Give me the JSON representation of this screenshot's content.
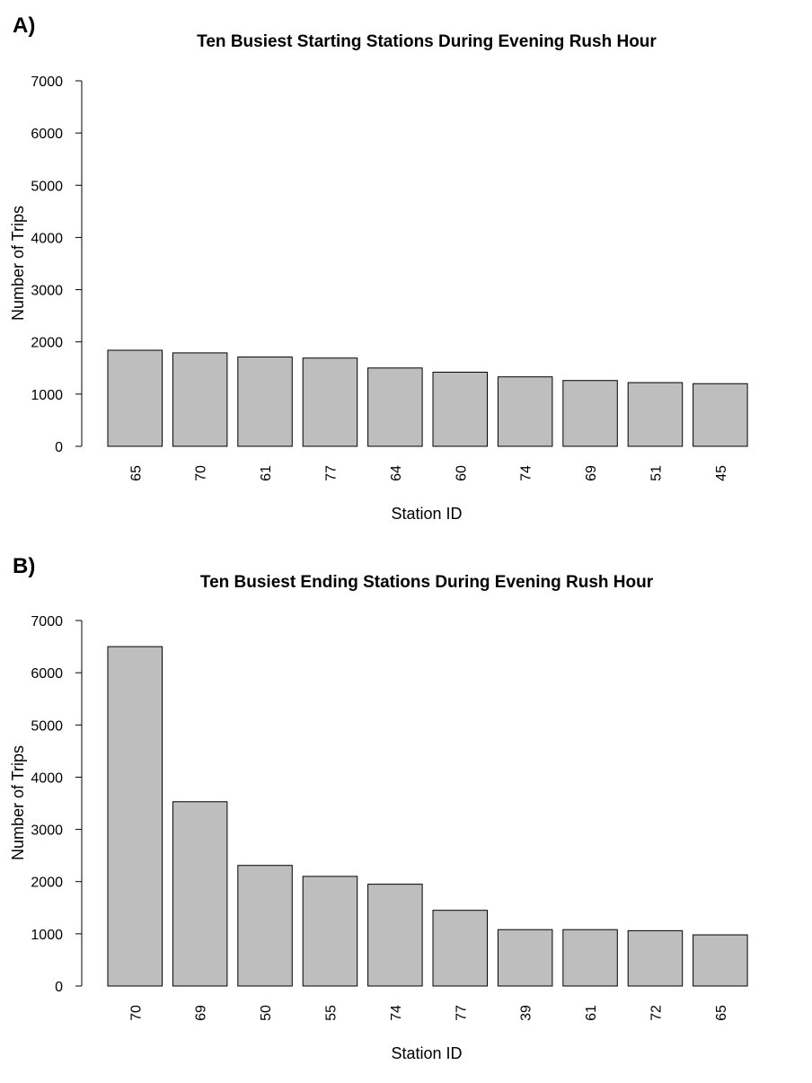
{
  "panels": [
    {
      "letter": "A)",
      "chart_data": {
        "type": "bar",
        "title": "Ten Busiest Starting Stations During Evening Rush Hour",
        "xlabel": "Station ID",
        "ylabel": "Number of Trips",
        "categories": [
          "65",
          "70",
          "61",
          "77",
          "64",
          "60",
          "74",
          "69",
          "51",
          "45"
        ],
        "values": [
          1840,
          1790,
          1710,
          1690,
          1500,
          1420,
          1330,
          1260,
          1220,
          1200
        ],
        "ylim": [
          0,
          7000
        ],
        "yticks": [
          0,
          1000,
          2000,
          3000,
          4000,
          5000,
          6000,
          7000
        ],
        "grid": false,
        "bar_color": "#bebebe"
      }
    },
    {
      "letter": "B)",
      "chart_data": {
        "type": "bar",
        "title": "Ten Busiest Ending Stations During Evening Rush Hour",
        "xlabel": "Station ID",
        "ylabel": "Number of Trips",
        "categories": [
          "70",
          "69",
          "50",
          "55",
          "74",
          "77",
          "39",
          "61",
          "72",
          "65"
        ],
        "values": [
          6500,
          3530,
          2310,
          2100,
          1950,
          1450,
          1080,
          1080,
          1060,
          980
        ],
        "ylim": [
          0,
          7000
        ],
        "yticks": [
          0,
          1000,
          2000,
          3000,
          4000,
          5000,
          6000,
          7000
        ],
        "grid": false,
        "bar_color": "#bebebe"
      }
    }
  ]
}
